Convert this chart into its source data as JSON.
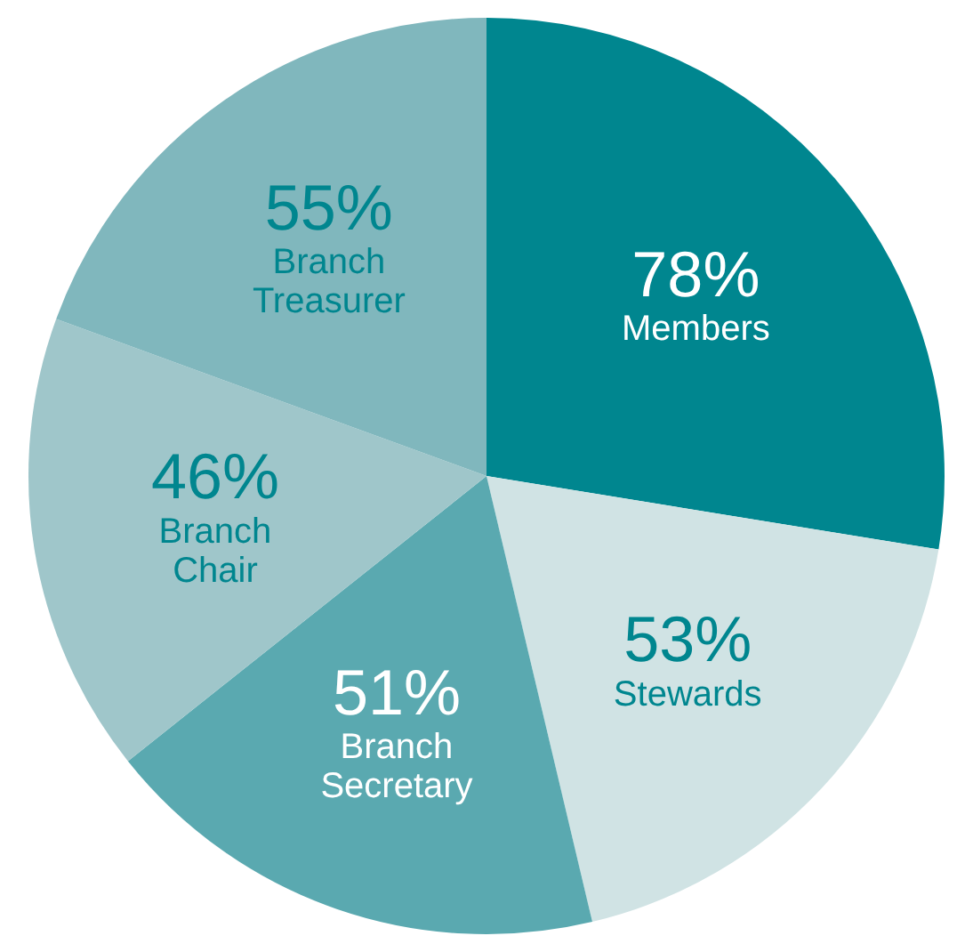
{
  "chart_data": {
    "type": "pie",
    "categories": [
      "Members",
      "Stewards",
      "Branch Secretary",
      "Branch Chair",
      "Branch Treasurer"
    ],
    "values": [
      78,
      53,
      51,
      46,
      55
    ],
    "colors": [
      "#00868f",
      "#d0e3e4",
      "#5aa9b0",
      "#9fc6ca",
      "#80b7bd"
    ],
    "value_labels": [
      "78%",
      "53%",
      "51%",
      "46%",
      "55%"
    ],
    "legend": false
  }
}
